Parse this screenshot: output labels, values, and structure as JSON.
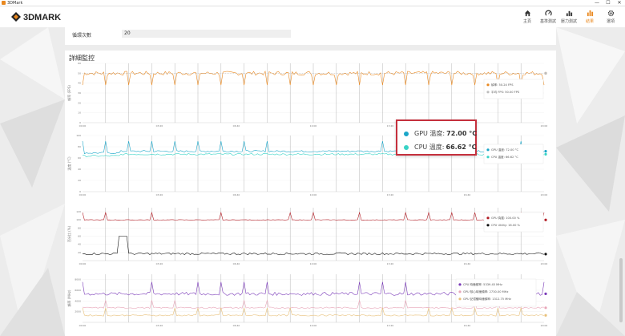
{
  "window": {
    "title": "3DMark",
    "controls": {
      "minimize": "—",
      "maximize": "☐",
      "close": "✕"
    }
  },
  "header": {
    "logo_text": "3DMARK",
    "nav": [
      {
        "label": "主頁",
        "icon": "home-icon"
      },
      {
        "label": "基準測試",
        "icon": "gauge-icon"
      },
      {
        "label": "壓力測試",
        "icon": "stress-chart-icon"
      },
      {
        "label": "結果",
        "icon": "results-bar-icon",
        "active": true
      },
      {
        "label": "選項",
        "icon": "gear-icon"
      }
    ]
  },
  "settings": {
    "loop_count_label": "循環次數",
    "loop_count_value": "20"
  },
  "monitoring": {
    "title": "詳細監控"
  },
  "tooltip": {
    "gpu_label": "GPU 溫度:",
    "gpu_value": "72.00 °C",
    "cpu_label": "CPU 溫度:",
    "cpu_value": "66.62 °C"
  },
  "colors": {
    "accent": "#e9881f",
    "fps": "#e9881f",
    "avg_fps": "#bdbdbd",
    "gpu_temp": "#1aa6c8",
    "cpu_temp": "#38d3c6",
    "gpu_load": "#b21c24",
    "cpu_util": "#111111",
    "cpu_clock": "#7a3ab8",
    "gpu_core_clock": "#e8a5b8",
    "gpu_mem_clock": "#e8c07a",
    "tooltip_border": "#c5303d"
  },
  "chart_data": [
    {
      "type": "line",
      "ylabel": "幀率 (FPS)",
      "y_ticks": [
        "60",
        "50",
        "40",
        "30",
        "20",
        "10",
        "0"
      ],
      "ylim": [
        0,
        60
      ],
      "x_ticks": [
        "00:00",
        "03:20",
        "06:40",
        "10:00",
        "13:20",
        "16:40",
        "20:00"
      ],
      "series": [
        {
          "name": "幀率",
          "legend_value": "50.24 FPS",
          "base": 50,
          "color": "#e9881f"
        },
        {
          "name": "平均 FPS",
          "legend_value": "50.00 FPS",
          "base": 50,
          "color": "#bdbdbd"
        }
      ]
    },
    {
      "type": "line",
      "ylabel": "溫度 (°C)",
      "y_ticks": [
        "100",
        "80",
        "60",
        "40",
        "20",
        "0"
      ],
      "ylim": [
        0,
        100
      ],
      "x_ticks": [
        "00:00",
        "03:20",
        "06:40",
        "10:00",
        "13:20",
        "16:40",
        "20:00"
      ],
      "series": [
        {
          "name": "GPU 溫度",
          "legend_value": "72.00 °C",
          "base": 72,
          "color": "#1aa6c8"
        },
        {
          "name": "CPU 溫度",
          "legend_value": "66.62 °C",
          "base": 66.62,
          "color": "#38d3c6"
        }
      ]
    },
    {
      "type": "line",
      "ylabel": "百分比 (%)",
      "y_ticks": [
        "120",
        "100",
        "80",
        "60",
        "40",
        "20"
      ],
      "ylim": [
        0,
        130
      ],
      "x_ticks": [
        "00:00",
        "03:20",
        "06:40",
        "10:00",
        "13:20",
        "16:40",
        "20:00"
      ],
      "series": [
        {
          "name": "GPU 負載",
          "legend_value": "100.00 %",
          "base": 100,
          "color": "#b21c24"
        },
        {
          "name": "CPU Utility",
          "legend_value": "16.00 %",
          "base": 16,
          "color": "#111111"
        }
      ]
    },
    {
      "type": "line",
      "ylabel": "頻率 (MHz)",
      "y_ticks": [
        "8000",
        "6000",
        "4000",
        "2000"
      ],
      "ylim": [
        0,
        9000
      ],
      "x_ticks": [
        "00:00",
        "03:20",
        "06:40",
        "10:00",
        "13:20",
        "16:40",
        "20:00"
      ],
      "series": [
        {
          "name": "CPU 時鐘頻率",
          "legend_value": "5339.45 MHz",
          "base": 5339.45,
          "color": "#7a3ab8"
        },
        {
          "name": "GPU 核心時鐘頻率",
          "legend_value": "2730.00 MHz",
          "base": 2730,
          "color": "#e8a5b8"
        },
        {
          "name": "GPU 記憶體時鐘頻率",
          "legend_value": "1312.75 MHz",
          "base": 1312.75,
          "color": "#e8c07a"
        }
      ]
    }
  ]
}
